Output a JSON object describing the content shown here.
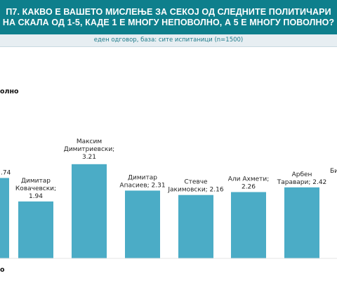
{
  "header": {
    "title_line1": "П7. КАКВО Е ВАШЕТО МИСЛЕЊЕ ЗА СЕКОЈ ОД СЛЕДНИТЕ ПОЛИТИЧАРИ",
    "title_line2": "НА СКАЛА ОД 1-5, КАДЕ 1 Е МНОГУ НЕПОВОЛНО, А 5 Е МНОГУ ПОВОЛНО?",
    "subtitle": "еден одговор, база: сите испитаници (n=1500)"
  },
  "side_label": "олно",
  "bottom_label": "о",
  "colors": {
    "header_bg": "#0e7f8c",
    "bar": "#4bacc6"
  },
  "chart_data": {
    "type": "bar",
    "title": "П7. КАКВО Е ВАШЕТО МИСЛЕЊЕ ЗА СЕКОЈ ОД СЛЕДНИТЕ ПОЛИТИЧАРИ НА СКАЛА ОД 1-5, КАДЕ 1 Е МНОГУ НЕПОВОЛНО, А 5 Е МНОГУ ПОВОЛНО?",
    "subtitle": "еден одговор, база: сите испитаници (n=1500)",
    "categories": [
      "",
      "Димитар Ковачевски",
      "Максим Димитриевски",
      "Димитар Апасиев",
      "Стевче Јакимовски",
      "Али Ахмети",
      "Арбен Таравари",
      "Би"
    ],
    "values": [
      2.74,
      1.94,
      3.21,
      2.31,
      2.16,
      2.26,
      2.42,
      null
    ],
    "data_labels": [
      [
        ".74"
      ],
      [
        "Димитар",
        "Ковачевски;",
        "1.94"
      ],
      [
        "Максим",
        "Димитриевски;",
        "3.21"
      ],
      [
        "Димитар",
        "Апасиев; 2.31"
      ],
      [
        "Стевче",
        "Јакимовски; 2.16"
      ],
      [
        "Али Ахмети;",
        "2.26"
      ],
      [
        "Арбен",
        "Таравари; 2.42"
      ],
      [
        "Би"
      ]
    ],
    "ylim": [
      0,
      5
    ],
    "grid": false,
    "legend": "none"
  }
}
